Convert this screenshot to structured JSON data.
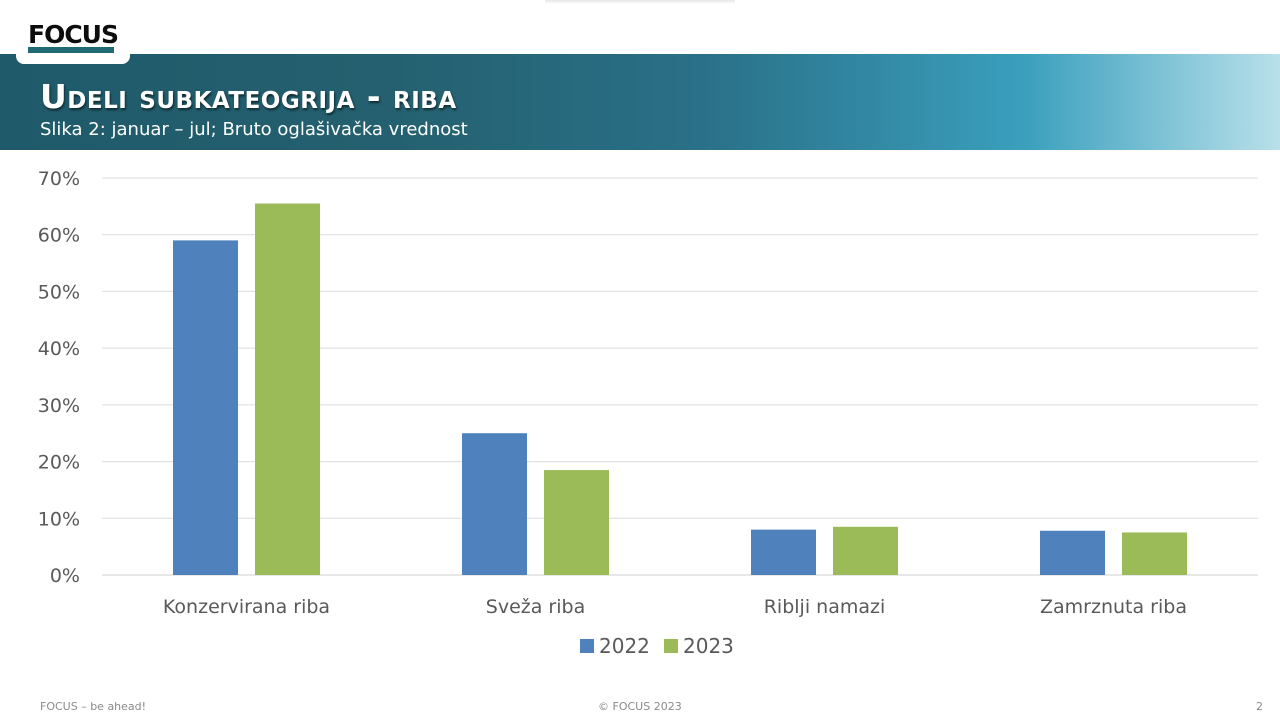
{
  "header": {
    "title": "Udeli subkateogrija - riba",
    "subtitle": "Slika 2: januar – jul; Bruto oglašivačka vrednost"
  },
  "logo": {
    "text": "FOCUS"
  },
  "chart_data": {
    "type": "bar",
    "categories": [
      "Konzervirana riba",
      "Sveža riba",
      "Riblji namazi",
      "Zamrznuta riba"
    ],
    "series": [
      {
        "name": "2022",
        "values": [
          59,
          25,
          8,
          7.8
        ],
        "color": "#4f81bd"
      },
      {
        "name": "2023",
        "values": [
          65.5,
          18.5,
          8.5,
          7.5
        ],
        "color": "#9bbb59"
      }
    ],
    "ylim": [
      0,
      70
    ],
    "yticks": [
      "0%",
      "10%",
      "20%",
      "30%",
      "40%",
      "50%",
      "60%",
      "70%"
    ],
    "grid": true,
    "legend": "bottom"
  },
  "footer": {
    "left": "FOCUS – be ahead!",
    "center": "© FOCUS 2023",
    "page": "2"
  }
}
